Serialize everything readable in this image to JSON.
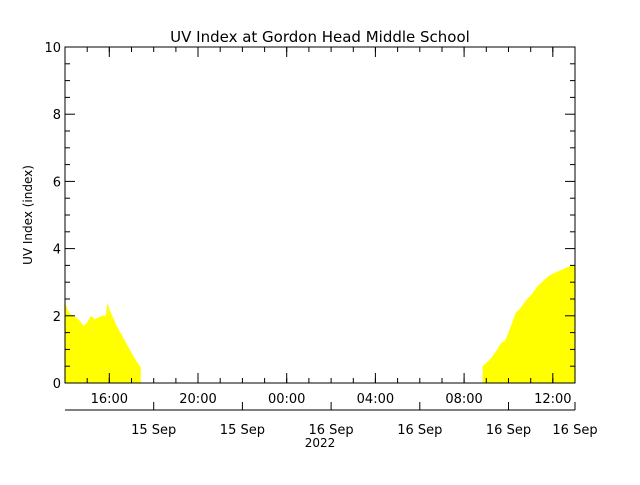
{
  "chart_data": {
    "type": "area",
    "title": "UV Index at Gordon Head Middle School",
    "ylabel": "UV Index (index)",
    "xlabel": "2022",
    "ylim": [
      0,
      10
    ],
    "yticks": [
      0,
      2,
      4,
      6,
      8,
      10
    ],
    "xlim": [
      "2022-09-15T14:00",
      "2022-09-16T13:00"
    ],
    "time_ticks": [
      {
        "t": "2022-09-15T16:00",
        "label": "16:00"
      },
      {
        "t": "2022-09-15T20:00",
        "label": "20:00"
      },
      {
        "t": "2022-09-16T00:00",
        "label": "00:00"
      },
      {
        "t": "2022-09-16T04:00",
        "label": "04:00"
      },
      {
        "t": "2022-09-16T08:00",
        "label": "08:00"
      },
      {
        "t": "2022-09-16T12:00",
        "label": "12:00"
      }
    ],
    "date_ticks": [
      {
        "t": "2022-09-15T18:00",
        "label": "15 Sep"
      },
      {
        "t": "2022-09-15T22:00",
        "label": "15 Sep"
      },
      {
        "t": "2022-09-16T02:00",
        "label": "16 Sep"
      },
      {
        "t": "2022-09-16T06:00",
        "label": "16 Sep"
      },
      {
        "t": "2022-09-16T10:00",
        "label": "16 Sep"
      },
      {
        "t": "2022-09-16T13:00",
        "label": "16 Sep"
      }
    ],
    "fill_color": "#ffff00",
    "series": [
      {
        "x": [
          "2022-09-15T14:00",
          "2022-09-15T14:10",
          "2022-09-15T14:20",
          "2022-09-15T14:30",
          "2022-09-15T14:40",
          "2022-09-15T14:50",
          "2022-09-15T15:00",
          "2022-09-15T15:10",
          "2022-09-15T15:20",
          "2022-09-15T15:30",
          "2022-09-15T15:40",
          "2022-09-15T15:50",
          "2022-09-15T15:55",
          "2022-09-15T16:00",
          "2022-09-15T16:10",
          "2022-09-15T16:20",
          "2022-09-15T16:30",
          "2022-09-15T16:40",
          "2022-09-15T16:50",
          "2022-09-15T17:00",
          "2022-09-15T17:10",
          "2022-09-15T17:20",
          "2022-09-15T17:25",
          "2022-09-15T17:25"
        ],
        "y": [
          2.4,
          2.1,
          2.0,
          1.95,
          1.85,
          1.7,
          1.8,
          2.0,
          1.9,
          1.95,
          2.0,
          2.0,
          2.4,
          2.2,
          1.95,
          1.7,
          1.5,
          1.3,
          1.1,
          0.9,
          0.7,
          0.55,
          0.45,
          0
        ]
      },
      {
        "x": [
          "2022-09-16T08:50",
          "2022-09-16T08:50",
          "2022-09-16T09:00",
          "2022-09-16T09:10",
          "2022-09-16T09:20",
          "2022-09-16T09:30",
          "2022-09-16T09:40",
          "2022-09-16T09:50",
          "2022-09-16T10:00",
          "2022-09-16T10:10",
          "2022-09-16T10:20",
          "2022-09-16T10:30",
          "2022-09-16T10:40",
          "2022-09-16T10:50",
          "2022-09-16T11:00",
          "2022-09-16T11:10",
          "2022-09-16T11:20",
          "2022-09-16T11:30",
          "2022-09-16T11:40",
          "2022-09-16T11:50",
          "2022-09-16T12:00",
          "2022-09-16T12:10",
          "2022-09-16T12:20",
          "2022-09-16T12:30",
          "2022-09-16T12:40",
          "2022-09-16T12:50",
          "2022-09-16T13:00"
        ],
        "y": [
          0,
          0.5,
          0.6,
          0.7,
          0.85,
          1.0,
          1.2,
          1.25,
          1.5,
          1.8,
          2.1,
          2.2,
          2.35,
          2.5,
          2.6,
          2.75,
          2.9,
          3.0,
          3.1,
          3.2,
          3.25,
          3.3,
          3.35,
          3.4,
          3.45,
          3.5,
          3.5
        ]
      }
    ]
  }
}
